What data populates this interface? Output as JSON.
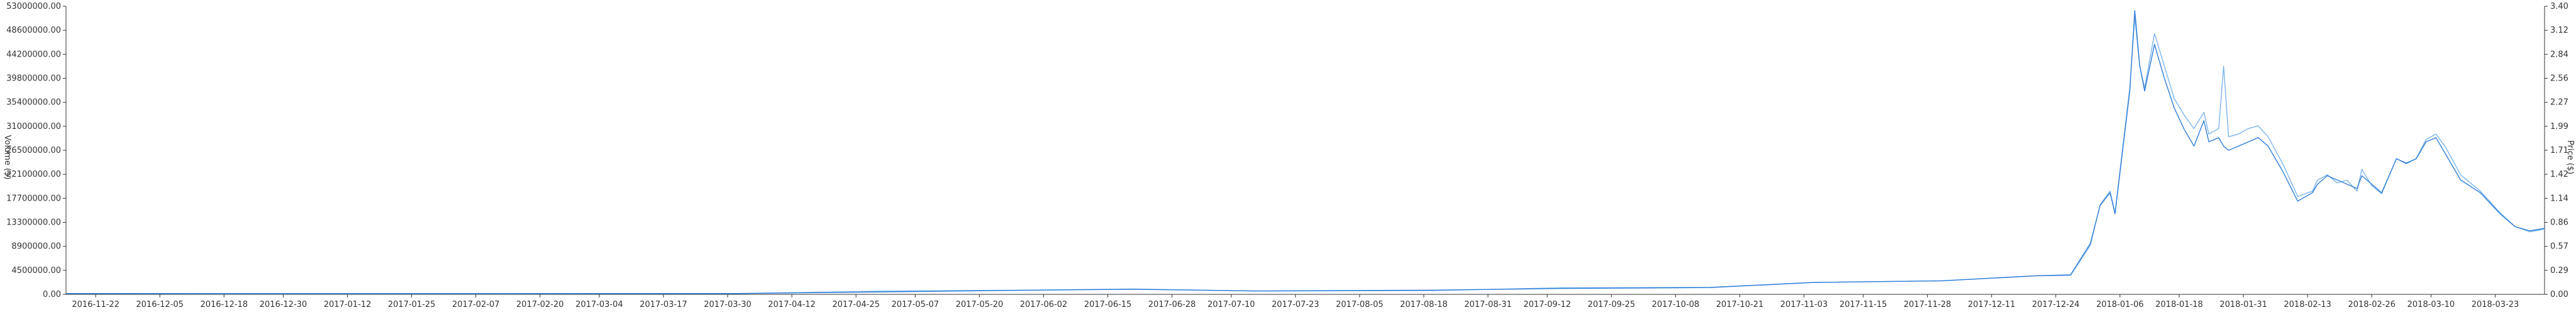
{
  "chart_data": {
    "type": "line",
    "title": "",
    "xlabel": "",
    "ylabel_left": "Volume ($)",
    "ylabel_right": "Price ($)",
    "grid": false,
    "ylim_left": [
      0,
      53000000
    ],
    "ylim_right": [
      0,
      3.4
    ],
    "yticks_left": [
      "0.00",
      "4500000.00",
      "8900000.00",
      "13300000.00",
      "17700000.00",
      "22100000.00",
      "26500000.00",
      "31000000.00",
      "35400000.00",
      "39800000.00",
      "44200000.00",
      "48600000.00",
      "53000000.00"
    ],
    "yticks_right": [
      "0.00",
      "0.29",
      "0.57",
      "0.86",
      "1.14",
      "1.42",
      "1.71",
      "1.99",
      "2.27",
      "2.56",
      "2.84",
      "3.12",
      "3.40"
    ],
    "x_start": "2016-11-16",
    "x_end": "2018-04-02",
    "xticks": [
      "2016-11-22",
      "2016-12-05",
      "2016-12-18",
      "2016-12-30",
      "2017-01-12",
      "2017-01-25",
      "2017-02-07",
      "2017-02-20",
      "2017-03-04",
      "2017-03-17",
      "2017-03-30",
      "2017-04-12",
      "2017-04-25",
      "2017-05-07",
      "2017-05-20",
      "2017-06-02",
      "2017-06-15",
      "2017-06-28",
      "2017-07-10",
      "2017-07-23",
      "2017-08-05",
      "2017-08-18",
      "2017-08-31",
      "2017-09-12",
      "2017-09-25",
      "2017-10-08",
      "2017-10-21",
      "2017-11-03",
      "2017-11-15",
      "2017-11-28",
      "2017-12-11",
      "2017-12-24",
      "2018-01-06",
      "2018-01-18",
      "2018-01-31",
      "2018-02-13",
      "2018-02-26",
      "2018-03-10",
      "2018-03-23"
    ],
    "colors": {
      "price": "#2f7ed8",
      "volume": "#7cb5ec",
      "axis": "#333333"
    },
    "series": [
      {
        "axis": "left",
        "points": [
          [
            "2016-11-16",
            150000
          ],
          [
            "2016-12-15",
            100000
          ],
          [
            "2017-02-01",
            100000
          ],
          [
            "2017-04-01",
            150000
          ],
          [
            "2017-05-01",
            600000
          ],
          [
            "2017-06-01",
            800000
          ],
          [
            "2017-06-20",
            1000000
          ],
          [
            "2017-07-15",
            600000
          ],
          [
            "2017-08-20",
            700000
          ],
          [
            "2017-09-15",
            1200000
          ],
          [
            "2017-10-15",
            1300000
          ],
          [
            "2017-11-05",
            2200000
          ],
          [
            "2017-12-01",
            2500000
          ],
          [
            "2017-12-20",
            3400000
          ],
          [
            "2017-12-27",
            3500000
          ],
          [
            "2017-12-31",
            9000000
          ],
          [
            "2018-01-02",
            16500000
          ],
          [
            "2018-01-04",
            19000000
          ],
          [
            "2018-01-05",
            15000000
          ],
          [
            "2018-01-08",
            38000000
          ],
          [
            "2018-01-09",
            51000000
          ],
          [
            "2018-01-10",
            42000000
          ],
          [
            "2018-01-11",
            38000000
          ],
          [
            "2018-01-13",
            48000000
          ],
          [
            "2018-01-15",
            42000000
          ],
          [
            "2018-01-17",
            36000000
          ],
          [
            "2018-01-19",
            33000000
          ],
          [
            "2018-01-21",
            30500000
          ],
          [
            "2018-01-23",
            33500000
          ],
          [
            "2018-01-24",
            29500000
          ],
          [
            "2018-01-26",
            30500000
          ],
          [
            "2018-01-27",
            42000000
          ],
          [
            "2018-01-28",
            29000000
          ],
          [
            "2018-01-30",
            29500000
          ],
          [
            "2018-02-01",
            30500000
          ],
          [
            "2018-02-03",
            31000000
          ],
          [
            "2018-02-05",
            29000000
          ],
          [
            "2018-02-08",
            24000000
          ],
          [
            "2018-02-11",
            18000000
          ],
          [
            "2018-02-14",
            19000000
          ],
          [
            "2018-02-15",
            21000000
          ],
          [
            "2018-02-17",
            22000000
          ],
          [
            "2018-02-19",
            20500000
          ],
          [
            "2018-02-21",
            21000000
          ],
          [
            "2018-02-23",
            19000000
          ],
          [
            "2018-02-24",
            23000000
          ],
          [
            "2018-02-26",
            20000000
          ],
          [
            "2018-02-28",
            18500000
          ],
          [
            "2018-03-03",
            25000000
          ],
          [
            "2018-03-05",
            24000000
          ],
          [
            "2018-03-07",
            25000000
          ],
          [
            "2018-03-09",
            28500000
          ],
          [
            "2018-03-11",
            29500000
          ],
          [
            "2018-03-13",
            27000000
          ],
          [
            "2018-03-16",
            22000000
          ],
          [
            "2018-03-20",
            19000000
          ],
          [
            "2018-03-24",
            15000000
          ],
          [
            "2018-03-27",
            12500000
          ],
          [
            "2018-03-30",
            11500000
          ],
          [
            "2018-04-02",
            12000000
          ]
        ]
      },
      {
        "axis": "right",
        "points": [
          [
            "2016-11-16",
            0.01
          ],
          [
            "2016-12-15",
            0.01
          ],
          [
            "2017-02-01",
            0.01
          ],
          [
            "2017-04-01",
            0.01
          ],
          [
            "2017-05-01",
            0.03
          ],
          [
            "2017-06-01",
            0.05
          ],
          [
            "2017-06-20",
            0.06
          ],
          [
            "2017-07-15",
            0.04
          ],
          [
            "2017-08-20",
            0.05
          ],
          [
            "2017-09-15",
            0.07
          ],
          [
            "2017-10-15",
            0.08
          ],
          [
            "2017-11-05",
            0.14
          ],
          [
            "2017-12-01",
            0.16
          ],
          [
            "2017-12-20",
            0.22
          ],
          [
            "2017-12-27",
            0.23
          ],
          [
            "2017-12-31",
            0.6
          ],
          [
            "2018-01-02",
            1.05
          ],
          [
            "2018-01-04",
            1.2
          ],
          [
            "2018-01-05",
            0.95
          ],
          [
            "2018-01-08",
            2.4
          ],
          [
            "2018-01-09",
            3.35
          ],
          [
            "2018-01-10",
            2.7
          ],
          [
            "2018-01-11",
            2.4
          ],
          [
            "2018-01-13",
            2.95
          ],
          [
            "2018-01-15",
            2.55
          ],
          [
            "2018-01-17",
            2.2
          ],
          [
            "2018-01-19",
            1.95
          ],
          [
            "2018-01-21",
            1.75
          ],
          [
            "2018-01-23",
            2.05
          ],
          [
            "2018-01-24",
            1.8
          ],
          [
            "2018-01-26",
            1.85
          ],
          [
            "2018-01-27",
            1.75
          ],
          [
            "2018-01-28",
            1.7
          ],
          [
            "2018-01-30",
            1.75
          ],
          [
            "2018-02-01",
            1.8
          ],
          [
            "2018-02-03",
            1.85
          ],
          [
            "2018-02-05",
            1.75
          ],
          [
            "2018-02-08",
            1.45
          ],
          [
            "2018-02-11",
            1.1
          ],
          [
            "2018-02-14",
            1.2
          ],
          [
            "2018-02-15",
            1.3
          ],
          [
            "2018-02-17",
            1.4
          ],
          [
            "2018-02-19",
            1.35
          ],
          [
            "2018-02-21",
            1.3
          ],
          [
            "2018-02-23",
            1.25
          ],
          [
            "2018-02-24",
            1.4
          ],
          [
            "2018-02-26",
            1.3
          ],
          [
            "2018-02-28",
            1.2
          ],
          [
            "2018-03-03",
            1.6
          ],
          [
            "2018-03-05",
            1.55
          ],
          [
            "2018-03-07",
            1.6
          ],
          [
            "2018-03-09",
            1.8
          ],
          [
            "2018-03-11",
            1.85
          ],
          [
            "2018-03-13",
            1.65
          ],
          [
            "2018-03-16",
            1.35
          ],
          [
            "2018-03-20",
            1.2
          ],
          [
            "2018-03-24",
            0.95
          ],
          [
            "2018-03-27",
            0.8
          ],
          [
            "2018-03-30",
            0.75
          ],
          [
            "2018-04-02",
            0.78
          ]
        ]
      }
    ]
  }
}
